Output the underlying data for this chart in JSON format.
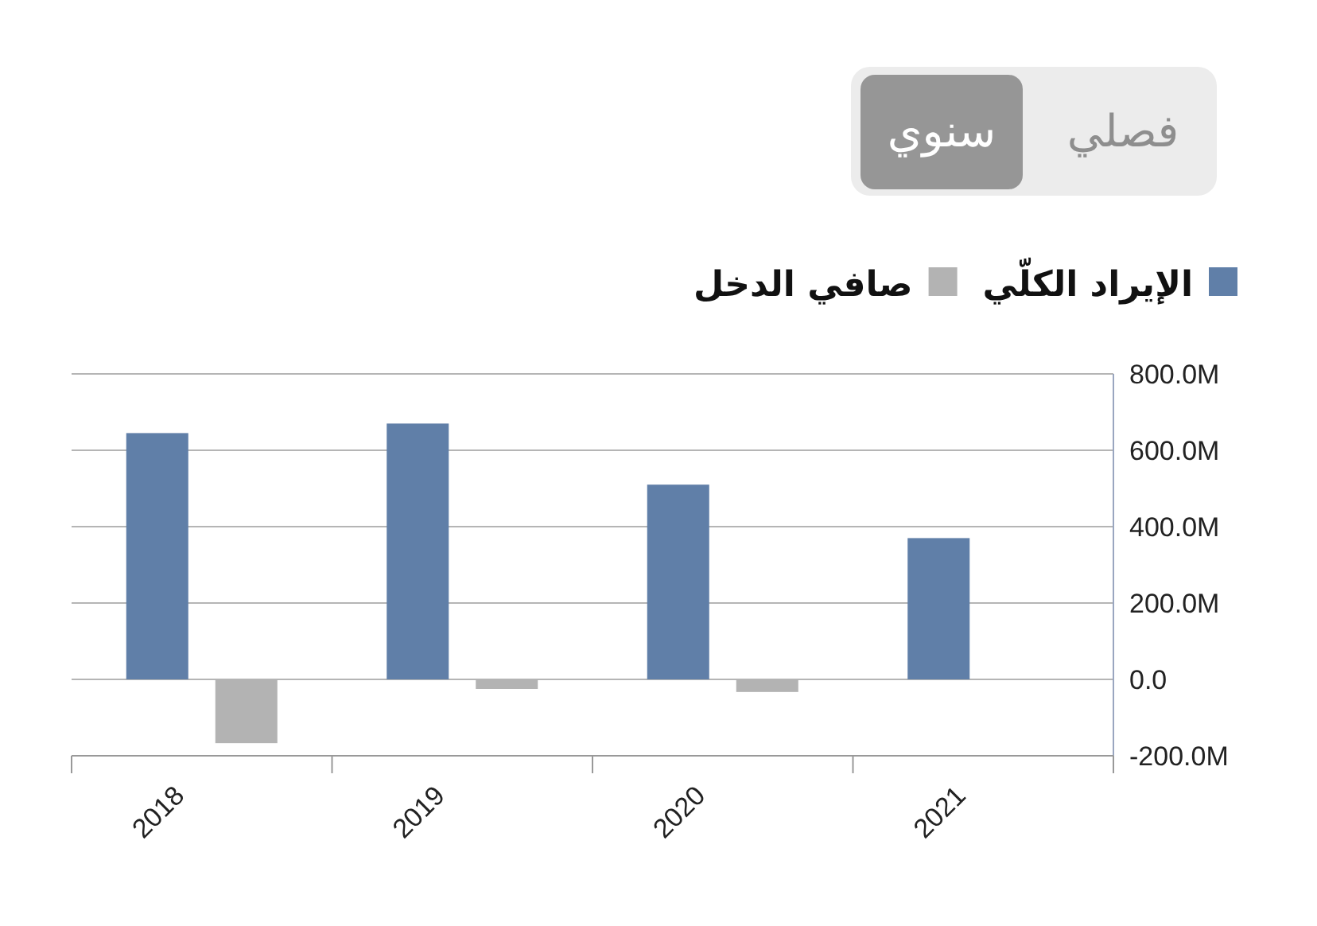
{
  "chart_data": {
    "type": "bar",
    "categories": [
      "2018",
      "2019",
      "2020",
      "2021"
    ],
    "series": [
      {
        "name": "الإيراد الكلّي",
        "color": "#607fa8",
        "values": [
          645,
          670,
          510,
          370
        ]
      },
      {
        "name": "صافي الدخل",
        "color": "#b3b3b3",
        "values": [
          -167,
          -25,
          -33,
          null
        ]
      }
    ],
    "ylim": [
      -200,
      800
    ],
    "yticks": [
      {
        "value": -200,
        "label": "-200.0M"
      },
      {
        "value": 0,
        "label": "0.0"
      },
      {
        "value": 200,
        "label": "200.0M"
      },
      {
        "value": 400,
        "label": "400.0M"
      },
      {
        "value": 600,
        "label": "600.0M"
      },
      {
        "value": 800,
        "label": "800.0M"
      }
    ],
    "grid": "y",
    "legend": "top right",
    "annotations": [
      "فصلي",
      "سنوي"
    ]
  }
}
